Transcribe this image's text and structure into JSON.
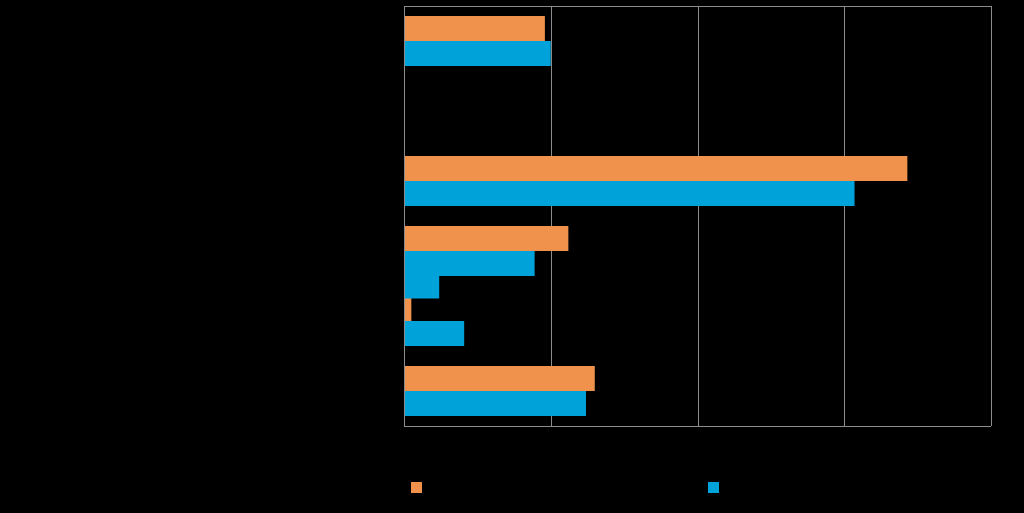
{
  "chart_data": {
    "type": "bar",
    "orientation": "horizontal",
    "title": "",
    "xlabel": "",
    "ylabel": "",
    "xlim": [
      0,
      4
    ],
    "grid": true,
    "legend_position": "bottom",
    "categories": [
      "",
      "",
      "",
      "",
      "",
      ""
    ],
    "series": [
      {
        "color": "#f0924b",
        "values": [
          0.96,
          null,
          3.43,
          1.12,
          0.05,
          1.3
        ]
      },
      {
        "color": "#00a3d9",
        "values": [
          1.0,
          null,
          3.07,
          0.89,
          0.41,
          1.24
        ]
      }
    ],
    "extra_bars": [
      {
        "series": 1,
        "between": [
          3,
          4
        ],
        "value": 0.24
      }
    ]
  }
}
